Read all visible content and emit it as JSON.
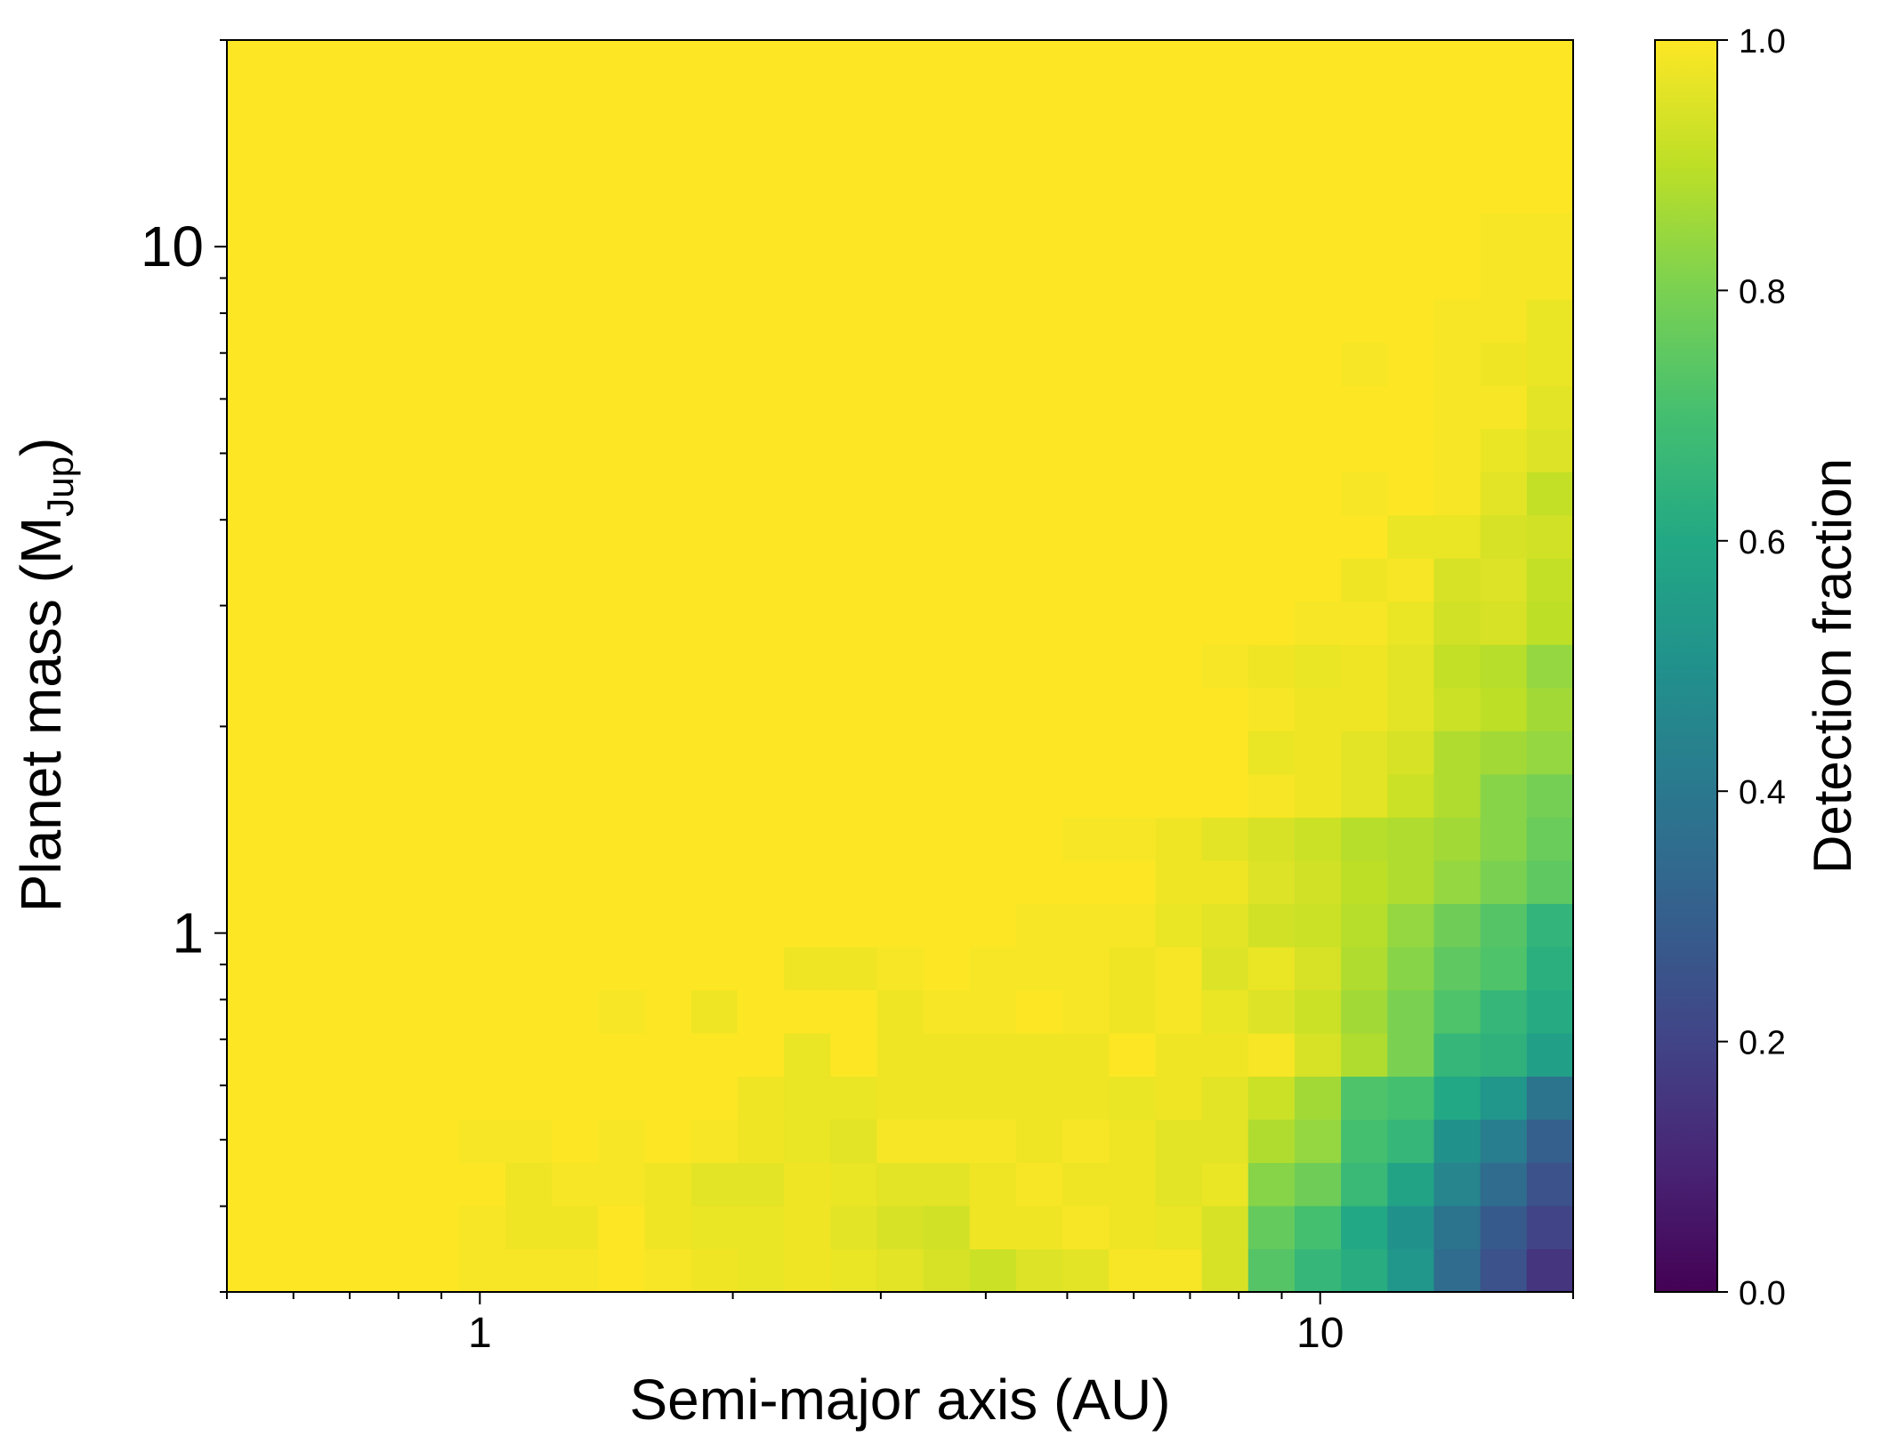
{
  "chart_data": {
    "type": "heatmap",
    "title": "",
    "xlabel": "Semi-major axis (AU)",
    "ylabel_main": "Planet mass (M",
    "ylabel_sub": "Jup",
    "ylabel_close": ")",
    "x_scale": "log",
    "y_scale": "log",
    "xlim": [
      0.5,
      20
    ],
    "ylim": [
      0.3,
      20
    ],
    "grid": false,
    "x_major_ticks": [
      1,
      10
    ],
    "x_tick_labels": [
      "1",
      "10"
    ],
    "y_major_ticks": [
      1,
      10
    ],
    "y_tick_labels": [
      "1",
      "10"
    ],
    "colorbar": {
      "label": "Detection fraction",
      "colormap": "viridis",
      "range": [
        0.0,
        1.0
      ],
      "ticks": [
        0.0,
        0.2,
        0.4,
        0.6,
        0.8,
        1.0
      ],
      "tick_labels": [
        "0.0",
        "0.2",
        "0.4",
        "0.6",
        "0.8",
        "1.0"
      ],
      "placement": "right"
    },
    "grid_cols": 29,
    "grid_rows": 29,
    "values": [
      [
        1,
        1,
        1,
        1,
        1,
        0.99,
        0.99,
        0.99,
        1,
        0.99,
        0.98,
        0.97,
        0.98,
        0.97,
        0.96,
        0.94,
        0.92,
        0.95,
        0.96,
        0.99,
        0.99,
        0.94,
        0.73,
        0.66,
        0.62,
        0.52,
        0.35,
        0.25,
        0.15
      ],
      [
        1,
        1,
        1,
        1,
        1,
        0.99,
        0.98,
        0.98,
        1,
        0.98,
        0.97,
        0.97,
        0.98,
        0.96,
        0.94,
        0.93,
        0.98,
        0.98,
        0.99,
        0.98,
        0.97,
        0.94,
        0.76,
        0.7,
        0.6,
        0.5,
        0.38,
        0.28,
        0.2
      ],
      [
        1,
        1,
        1,
        1,
        1,
        1,
        0.98,
        0.99,
        0.99,
        0.98,
        0.96,
        0.96,
        0.98,
        0.97,
        0.96,
        0.96,
        0.98,
        0.99,
        0.98,
        0.98,
        0.96,
        0.97,
        0.82,
        0.78,
        0.67,
        0.58,
        0.45,
        0.35,
        0.25
      ],
      [
        1,
        1,
        1,
        1,
        1,
        0.99,
        0.99,
        1,
        0.99,
        1,
        0.99,
        0.98,
        0.97,
        0.96,
        0.99,
        0.99,
        0.99,
        0.98,
        0.99,
        0.98,
        0.96,
        0.96,
        0.88,
        0.84,
        0.7,
        0.66,
        0.5,
        0.42,
        0.3
      ],
      [
        1,
        1,
        1,
        1,
        1,
        1,
        1,
        1,
        1,
        1,
        1,
        0.98,
        0.97,
        0.97,
        0.98,
        0.98,
        0.98,
        0.98,
        0.98,
        0.97,
        0.98,
        0.96,
        0.92,
        0.86,
        0.72,
        0.7,
        0.6,
        0.52,
        0.38
      ],
      [
        1,
        1,
        1,
        1,
        1,
        1,
        1,
        1,
        1,
        1,
        1,
        1,
        0.97,
        1,
        0.98,
        0.98,
        0.98,
        0.98,
        0.98,
        1,
        0.98,
        0.98,
        0.99,
        0.94,
        0.88,
        0.8,
        0.66,
        0.64,
        0.56
      ],
      [
        1,
        1,
        1,
        1,
        1,
        1,
        1,
        1,
        0.99,
        1,
        0.98,
        1,
        1,
        1,
        0.98,
        0.99,
        0.99,
        1,
        0.99,
        0.98,
        0.99,
        0.97,
        0.95,
        0.92,
        0.86,
        0.8,
        0.72,
        0.66,
        0.61
      ],
      [
        1,
        1,
        1,
        1,
        1,
        1,
        1,
        1,
        1,
        1,
        1,
        1,
        0.98,
        0.98,
        0.99,
        1,
        0.99,
        0.99,
        0.99,
        0.98,
        0.99,
        0.95,
        0.97,
        0.94,
        0.88,
        0.82,
        0.75,
        0.72,
        0.63
      ],
      [
        1,
        1,
        1,
        1,
        1,
        1,
        1,
        1,
        1,
        1,
        1,
        1,
        1,
        1,
        1,
        1,
        1,
        0.99,
        0.99,
        0.99,
        0.97,
        0.96,
        0.93,
        0.92,
        0.89,
        0.84,
        0.78,
        0.73,
        0.65
      ],
      [
        1,
        1,
        1,
        1,
        1,
        1,
        1,
        1,
        1,
        1,
        1,
        1,
        1,
        1,
        1,
        1,
        1,
        1,
        1,
        1,
        0.98,
        0.98,
        0.95,
        0.93,
        0.9,
        0.88,
        0.84,
        0.8,
        0.75
      ],
      [
        1,
        1,
        1,
        1,
        1,
        1,
        1,
        1,
        1,
        1,
        1,
        1,
        1,
        1,
        1,
        1,
        1,
        1,
        0.99,
        0.99,
        0.98,
        0.96,
        0.94,
        0.92,
        0.89,
        0.88,
        0.86,
        0.82,
        0.77
      ],
      [
        1,
        1,
        1,
        1,
        1,
        1,
        1,
        1,
        1,
        1,
        1,
        1,
        1,
        1,
        1,
        1,
        1,
        1,
        1,
        1,
        1,
        1,
        0.99,
        0.98,
        0.96,
        0.92,
        0.88,
        0.82,
        0.79
      ],
      [
        1,
        1,
        1,
        1,
        1,
        1,
        1,
        1,
        1,
        1,
        1,
        1,
        1,
        1,
        1,
        1,
        1,
        1,
        1,
        1,
        1,
        1,
        0.97,
        0.98,
        0.96,
        0.94,
        0.88,
        0.86,
        0.84
      ],
      [
        1,
        1,
        1,
        1,
        1,
        1,
        1,
        1,
        1,
        1,
        1,
        1,
        1,
        1,
        1,
        1,
        1,
        1,
        1,
        1,
        1,
        1,
        0.99,
        0.98,
        0.98,
        0.96,
        0.92,
        0.9,
        0.86
      ],
      [
        1,
        1,
        1,
        1,
        1,
        1,
        1,
        1,
        1,
        1,
        1,
        1,
        1,
        1,
        1,
        1,
        1,
        1,
        1,
        1,
        1,
        0.99,
        0.98,
        0.97,
        0.98,
        0.96,
        0.91,
        0.89,
        0.84
      ],
      [
        1,
        1,
        1,
        1,
        1,
        1,
        1,
        1,
        1,
        1,
        1,
        1,
        1,
        1,
        1,
        1,
        1,
        1,
        1,
        1,
        1,
        1,
        1,
        0.99,
        0.99,
        0.97,
        0.93,
        0.94,
        0.9
      ],
      [
        1,
        1,
        1,
        1,
        1,
        1,
        1,
        1,
        1,
        1,
        1,
        1,
        1,
        1,
        1,
        1,
        1,
        1,
        1,
        1,
        1,
        1,
        1,
        1,
        0.98,
        0.99,
        0.94,
        0.95,
        0.91
      ],
      [
        1,
        1,
        1,
        1,
        1,
        1,
        1,
        1,
        1,
        1,
        1,
        1,
        1,
        1,
        1,
        1,
        1,
        1,
        1,
        1,
        1,
        1,
        1,
        1,
        1,
        0.97,
        0.97,
        0.94,
        0.93
      ],
      [
        1,
        1,
        1,
        1,
        1,
        1,
        1,
        1,
        1,
        1,
        1,
        1,
        1,
        1,
        1,
        1,
        1,
        1,
        1,
        1,
        1,
        1,
        1,
        1,
        0.99,
        1,
        0.99,
        0.96,
        0.91
      ],
      [
        1,
        1,
        1,
        1,
        1,
        1,
        1,
        1,
        1,
        1,
        1,
        1,
        1,
        1,
        1,
        1,
        1,
        1,
        1,
        1,
        1,
        1,
        1,
        1,
        1,
        1,
        0.99,
        0.97,
        0.95
      ],
      [
        1,
        1,
        1,
        1,
        1,
        1,
        1,
        1,
        1,
        1,
        1,
        1,
        1,
        1,
        1,
        1,
        1,
        1,
        1,
        1,
        1,
        1,
        1,
        1,
        1,
        1,
        0.99,
        0.99,
        0.96
      ],
      [
        1,
        1,
        1,
        1,
        1,
        1,
        1,
        1,
        1,
        1,
        1,
        1,
        1,
        1,
        1,
        1,
        1,
        1,
        1,
        1,
        1,
        1,
        1,
        1,
        0.99,
        1,
        0.99,
        0.98,
        0.97
      ],
      [
        1,
        1,
        1,
        1,
        1,
        1,
        1,
        1,
        1,
        1,
        1,
        1,
        1,
        1,
        1,
        1,
        1,
        1,
        1,
        1,
        1,
        1,
        1,
        1,
        1,
        1,
        0.99,
        0.99,
        0.97
      ],
      [
        1,
        1,
        1,
        1,
        1,
        1,
        1,
        1,
        1,
        1,
        1,
        1,
        1,
        1,
        1,
        1,
        1,
        1,
        1,
        1,
        1,
        1,
        1,
        1,
        1,
        1,
        1,
        0.99,
        0.99
      ],
      [
        1,
        1,
        1,
        1,
        1,
        1,
        1,
        1,
        1,
        1,
        1,
        1,
        1,
        1,
        1,
        1,
        1,
        1,
        1,
        1,
        1,
        1,
        1,
        1,
        1,
        1,
        1,
        0.99,
        0.99
      ],
      [
        1,
        1,
        1,
        1,
        1,
        1,
        1,
        1,
        1,
        1,
        1,
        1,
        1,
        1,
        1,
        1,
        1,
        1,
        1,
        1,
        1,
        1,
        1,
        1,
        1,
        1,
        1,
        1,
        1
      ],
      [
        1,
        1,
        1,
        1,
        1,
        1,
        1,
        1,
        1,
        1,
        1,
        1,
        1,
        1,
        1,
        1,
        1,
        1,
        1,
        1,
        1,
        1,
        1,
        1,
        1,
        1,
        1,
        1,
        1
      ],
      [
        1,
        1,
        1,
        1,
        1,
        1,
        1,
        1,
        1,
        1,
        1,
        1,
        1,
        1,
        1,
        1,
        1,
        1,
        1,
        1,
        1,
        1,
        1,
        1,
        1,
        1,
        1,
        1,
        1
      ],
      [
        1,
        1,
        1,
        1,
        1,
        1,
        1,
        1,
        1,
        1,
        1,
        1,
        1,
        1,
        1,
        1,
        1,
        1,
        1,
        1,
        1,
        1,
        1,
        1,
        1,
        1,
        1,
        1,
        1
      ]
    ]
  }
}
